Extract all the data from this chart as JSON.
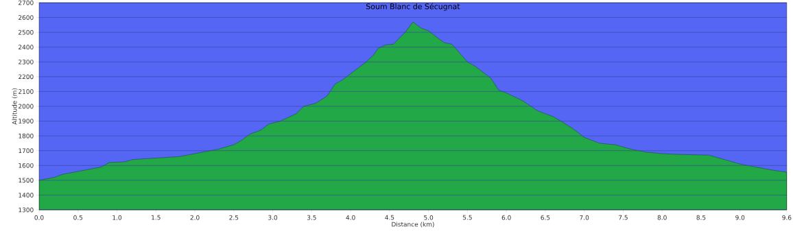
{
  "chart_data": {
    "type": "area",
    "title": "Soum Blanc de Sécugnat",
    "xlabel": "Distance   (km)",
    "ylabel": "Altitude (m)",
    "x": [
      0,
      0.2,
      0.3,
      0.5,
      0.7,
      0.8,
      0.9,
      1.1,
      1.2,
      1.5,
      1.8,
      2.0,
      2.3,
      2.5,
      2.6,
      2.7,
      2.85,
      2.95,
      3.1,
      3.3,
      3.4,
      3.55,
      3.7,
      3.8,
      3.9,
      4.0,
      4.2,
      4.3,
      4.35,
      4.45,
      4.55,
      4.7,
      4.8,
      4.9,
      5.0,
      5.1,
      5.2,
      5.3,
      5.4,
      5.5,
      5.6,
      5.7,
      5.8,
      5.9,
      6.0,
      6.2,
      6.4,
      6.6,
      6.7,
      6.85,
      7.0,
      7.2,
      7.4,
      7.6,
      7.8,
      8.0,
      8.2,
      8.6,
      8.8,
      9.0,
      9.2,
      9.4,
      9.6
    ],
    "values": [
      1500,
      1520,
      1540,
      1560,
      1580,
      1590,
      1620,
      1625,
      1640,
      1650,
      1660,
      1680,
      1710,
      1740,
      1770,
      1810,
      1840,
      1880,
      1900,
      1950,
      2000,
      2020,
      2070,
      2150,
      2180,
      2220,
      2300,
      2350,
      2390,
      2415,
      2420,
      2500,
      2570,
      2530,
      2510,
      2470,
      2430,
      2420,
      2360,
      2300,
      2270,
      2230,
      2190,
      2110,
      2090,
      2040,
      1970,
      1930,
      1900,
      1850,
      1790,
      1750,
      1740,
      1710,
      1690,
      1680,
      1675,
      1670,
      1640,
      1610,
      1590,
      1570,
      1555
    ],
    "color": "#22a846",
    "xlim": [
      0,
      9.6
    ],
    "xticks": [
      {
        "value": 0,
        "label": "0.0"
      },
      0.5,
      {
        "value": 1,
        "label": "1.0"
      },
      1.5,
      {
        "value": 2,
        "label": "2.0"
      },
      2.5,
      {
        "value": 3,
        "label": "3.0"
      },
      3.5,
      {
        "value": 4,
        "label": "4.0"
      },
      4.5,
      {
        "value": 5,
        "label": "5.0"
      },
      5.5,
      {
        "value": 6,
        "label": "6.0"
      },
      6.5,
      {
        "value": 7,
        "label": "7.0"
      },
      7.5,
      {
        "value": 8,
        "label": "8.0"
      },
      8.5,
      {
        "value": 9,
        "label": "9.0"
      },
      9.6
    ],
    "ylim": [
      1300,
      2700
    ],
    "yticks": [
      1300,
      1400,
      1500,
      1600,
      1700,
      1800,
      1900,
      2000,
      2100,
      2200,
      2300,
      2400,
      2500,
      2600,
      2700
    ],
    "grid": "y"
  }
}
